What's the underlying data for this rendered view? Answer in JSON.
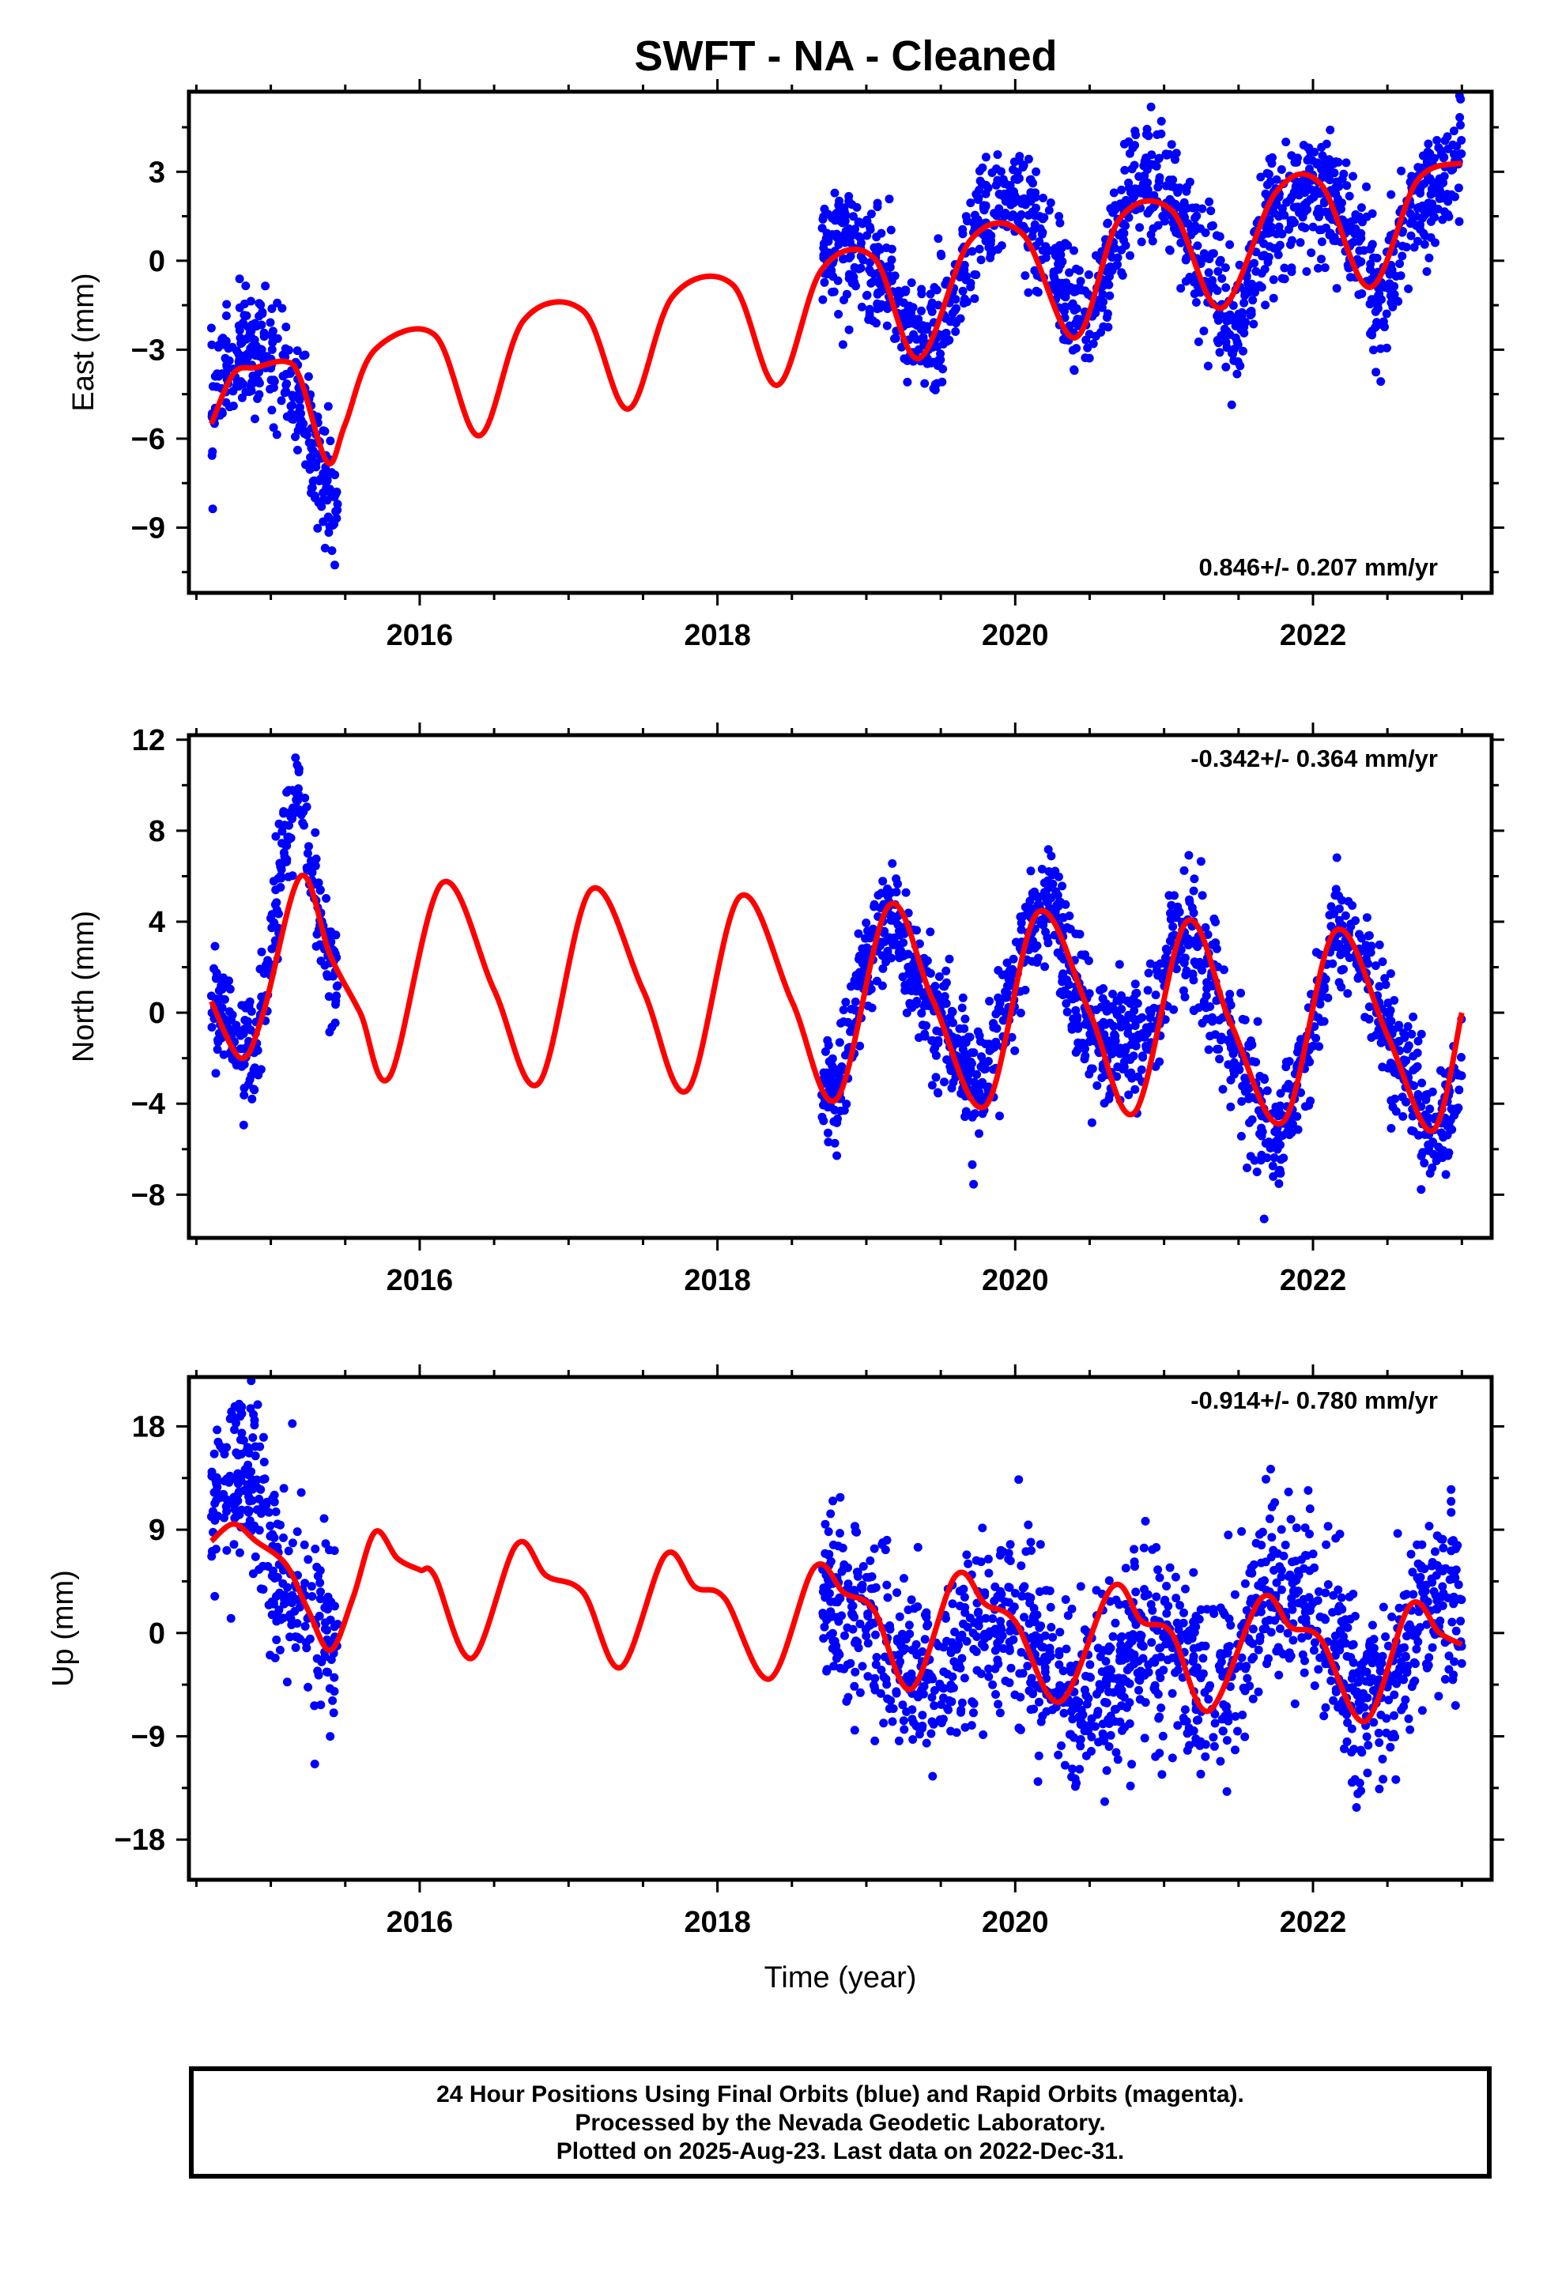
{
  "title": "SWFT  - NA - Cleaned",
  "footer": {
    "line1": "24 Hour Positions Using Final Orbits (blue) and Rapid Orbits (magenta).",
    "line2": "Processed by the Nevada Geodetic Laboratory.",
    "line3": "Plotted on 2025-Aug-23. Last data on 2022-Dec-31."
  },
  "colors": {
    "points": "#0000ff",
    "model": "#ff0000",
    "axes": "#000000"
  },
  "chart_data": [
    {
      "type": "scatter",
      "ylabel": "East (mm)",
      "xlabel": "",
      "annotation": "0.846+/- 0.207 mm/yr",
      "annotation_position": "bottom-right",
      "xlim": [
        2014.45,
        2023.2
      ],
      "ylim": [
        -11.2,
        5.7
      ],
      "xticks": [
        2016,
        2018,
        2020,
        2022
      ],
      "yticks": [
        -9,
        -6,
        -3,
        0,
        3
      ],
      "rate_mm_per_yr": 0.846,
      "series": [
        {
          "kind": "points",
          "values_summary": "daily positions",
          "segments": [
            {
              "start": 2014.6,
              "end": 2015.45,
              "points": [
                [
                  2014.6,
                  -5.0
                ],
                [
                  2014.7,
                  -3.8
                ],
                [
                  2014.8,
                  -3.2
                ],
                [
                  2014.9,
                  -2.9
                ],
                [
                  2015.0,
                  -3.1
                ],
                [
                  2015.1,
                  -3.6
                ],
                [
                  2015.2,
                  -4.8
                ],
                [
                  2015.3,
                  -6.5
                ],
                [
                  2015.4,
                  -8.0
                ]
              ],
              "noise": 1.0
            },
            {
              "start": 2018.7,
              "end": 2023.0,
              "points": [
                [
                  2018.7,
                  0.5
                ],
                [
                  2018.9,
                  0.5
                ],
                [
                  2019.1,
                  -0.5
                ],
                [
                  2019.3,
                  -2.3
                ],
                [
                  2019.45,
                  -2.8
                ],
                [
                  2019.6,
                  -1.0
                ],
                [
                  2019.8,
                  1.5
                ],
                [
                  2020.0,
                  2.0
                ],
                [
                  2020.2,
                  0.5
                ],
                [
                  2020.35,
                  -1.7
                ],
                [
                  2020.5,
                  -2.2
                ],
                [
                  2020.8,
                  2.8
                ],
                [
                  2021.0,
                  2.6
                ],
                [
                  2021.2,
                  0.5
                ],
                [
                  2021.35,
                  -1.3
                ],
                [
                  2021.5,
                  -2.2
                ],
                [
                  2021.7,
                  1.5
                ],
                [
                  2021.9,
                  2.0
                ],
                [
                  2022.1,
                  2.2
                ],
                [
                  2022.3,
                  0.5
                ],
                [
                  2022.45,
                  -1.5
                ],
                [
                  2022.6,
                  0.8
                ],
                [
                  2022.8,
                  2.5
                ],
                [
                  2023.0,
                  3.5
                ]
              ],
              "noise": 1.0
            }
          ]
        },
        {
          "kind": "line",
          "name": "",
          "points": [
            [
              2014.6,
              -5.5
            ],
            [
              2014.75,
              -3.8
            ],
            [
              2014.9,
              -3.6
            ],
            [
              2015.1,
              -3.4
            ],
            [
              2015.2,
              -4.0
            ],
            [
              2015.38,
              -6.8
            ],
            [
              2015.5,
              -5.5
            ],
            [
              2015.7,
              -3.0
            ],
            [
              2016.1,
              -2.5
            ],
            [
              2016.4,
              -5.9
            ],
            [
              2016.7,
              -2.0
            ],
            [
              2017.1,
              -1.7
            ],
            [
              2017.4,
              -5.0
            ],
            [
              2017.7,
              -1.2
            ],
            [
              2018.1,
              -0.8
            ],
            [
              2018.4,
              -4.2
            ],
            [
              2018.7,
              -0.3
            ],
            [
              2019.05,
              0.1
            ],
            [
              2019.35,
              -3.3
            ],
            [
              2019.7,
              0.7
            ],
            [
              2020.05,
              0.9
            ],
            [
              2020.4,
              -2.6
            ],
            [
              2020.7,
              1.4
            ],
            [
              2021.05,
              1.7
            ],
            [
              2021.38,
              -1.6
            ],
            [
              2021.75,
              2.3
            ],
            [
              2022.05,
              2.6
            ],
            [
              2022.38,
              -0.9
            ],
            [
              2022.7,
              2.7
            ],
            [
              2023.0,
              3.3
            ]
          ]
        }
      ]
    },
    {
      "type": "scatter",
      "ylabel": "North (mm)",
      "xlabel": "",
      "annotation": "-0.342+/- 0.364 mm/yr",
      "annotation_position": "top-right",
      "xlim": [
        2014.45,
        2023.2
      ],
      "ylim": [
        -9.9,
        12.2
      ],
      "xticks": [
        2016,
        2018,
        2020,
        2022
      ],
      "yticks": [
        -8,
        -4,
        0,
        4,
        8,
        12
      ],
      "rate_mm_per_yr": -0.342,
      "series": [
        {
          "kind": "points",
          "values_summary": "daily positions",
          "segments": [
            {
              "start": 2014.6,
              "end": 2015.45,
              "points": [
                [
                  2014.6,
                  1.0
                ],
                [
                  2014.75,
                  -1.5
                ],
                [
                  2014.9,
                  -2.0
                ],
                [
                  2015.0,
                  3.0
                ],
                [
                  2015.1,
                  7.5
                ],
                [
                  2015.2,
                  10.0
                ],
                [
                  2015.3,
                  5.0
                ],
                [
                  2015.45,
                  0.5
                ]
              ],
              "noise": 1.3
            },
            {
              "start": 2018.7,
              "end": 2023.0,
              "points": [
                [
                  2018.7,
                  -3.0
                ],
                [
                  2018.8,
                  -3.5
                ],
                [
                  2019.0,
                  2.0
                ],
                [
                  2019.15,
                  4.5
                ],
                [
                  2019.3,
                  2.0
                ],
                [
                  2019.5,
                  -0.5
                ],
                [
                  2019.75,
                  -3.5
                ],
                [
                  2019.9,
                  -1.0
                ],
                [
                  2020.1,
                  4.0
                ],
                [
                  2020.25,
                  5.0
                ],
                [
                  2020.4,
                  1.0
                ],
                [
                  2020.55,
                  -1.5
                ],
                [
                  2020.9,
                  -1.0
                ],
                [
                  2021.1,
                  3.5
                ],
                [
                  2021.3,
                  1.5
                ],
                [
                  2021.5,
                  -2.0
                ],
                [
                  2021.75,
                  -6.0
                ],
                [
                  2021.95,
                  -2.0
                ],
                [
                  2022.15,
                  4.0
                ],
                [
                  2022.35,
                  2.0
                ],
                [
                  2022.55,
                  -1.5
                ],
                [
                  2022.8,
                  -5.5
                ],
                [
                  2023.0,
                  -3.0
                ]
              ],
              "noise": 1.3
            }
          ]
        },
        {
          "kind": "line",
          "name": "",
          "points": [
            [
              2014.6,
              0.5
            ],
            [
              2014.8,
              -2.0
            ],
            [
              2014.95,
              0.0
            ],
            [
              2015.2,
              6.0
            ],
            [
              2015.4,
              2.5
            ],
            [
              2015.6,
              0.0
            ],
            [
              2015.8,
              -2.8
            ],
            [
              2016.15,
              5.7
            ],
            [
              2016.5,
              1.0
            ],
            [
              2016.8,
              -3.1
            ],
            [
              2017.15,
              5.4
            ],
            [
              2017.5,
              1.0
            ],
            [
              2017.8,
              -3.4
            ],
            [
              2018.15,
              5.1
            ],
            [
              2018.5,
              0.5
            ],
            [
              2018.8,
              -3.8
            ],
            [
              2019.15,
              4.7
            ],
            [
              2019.45,
              0.5
            ],
            [
              2019.8,
              -4.1
            ],
            [
              2020.15,
              4.4
            ],
            [
              2020.5,
              0.0
            ],
            [
              2020.8,
              -4.4
            ],
            [
              2021.15,
              4.0
            ],
            [
              2021.45,
              -0.5
            ],
            [
              2021.8,
              -4.8
            ],
            [
              2022.15,
              3.6
            ],
            [
              2022.5,
              -1.0
            ],
            [
              2022.8,
              -5.2
            ],
            [
              2023.0,
              0.0
            ]
          ]
        }
      ]
    },
    {
      "type": "scatter",
      "ylabel": "Up (mm)",
      "xlabel": "Time (year)",
      "annotation": "-0.914+/- 0.780 mm/yr",
      "annotation_position": "top-right",
      "xlim": [
        2014.45,
        2023.2
      ],
      "ylim": [
        -21.5,
        22.3
      ],
      "xticks": [
        2016,
        2018,
        2020,
        2022
      ],
      "yticks": [
        -18,
        -9,
        0,
        9,
        18
      ],
      "rate_mm_per_yr": -0.914,
      "series": [
        {
          "kind": "points",
          "values_summary": "daily positions",
          "segments": [
            {
              "start": 2014.6,
              "end": 2015.45,
              "points": [
                [
                  2014.6,
                  12.0
                ],
                [
                  2014.75,
                  14.0
                ],
                [
                  2014.9,
                  12.0
                ],
                [
                  2015.05,
                  5.0
                ],
                [
                  2015.2,
                  2.0
                ],
                [
                  2015.35,
                  0.0
                ],
                [
                  2015.45,
                  0.5
                ]
              ],
              "noise": 4.0
            },
            {
              "start": 2018.7,
              "end": 2023.0,
              "points": [
                [
                  2018.7,
                  3.0
                ],
                [
                  2018.9,
                  2.0
                ],
                [
                  2019.1,
                  0.0
                ],
                [
                  2019.3,
                  -4.0
                ],
                [
                  2019.5,
                  -3.0
                ],
                [
                  2019.7,
                  0.0
                ],
                [
                  2019.9,
                  2.0
                ],
                [
                  2020.1,
                  -1.0
                ],
                [
                  2020.3,
                  -5.0
                ],
                [
                  2020.5,
                  -7.0
                ],
                [
                  2020.9,
                  0.0
                ],
                [
                  2021.1,
                  -3.0
                ],
                [
                  2021.3,
                  -6.0
                ],
                [
                  2021.5,
                  -2.0
                ],
                [
                  2021.7,
                  4.0
                ],
                [
                  2021.9,
                  3.0
                ],
                [
                  2022.1,
                  0.0
                ],
                [
                  2022.3,
                  -6.0
                ],
                [
                  2022.5,
                  -4.0
                ],
                [
                  2022.7,
                  1.0
                ],
                [
                  2022.9,
                  4.0
                ],
                [
                  2023.0,
                  2.0
                ]
              ],
              "noise": 4.0
            }
          ]
        },
        {
          "kind": "line",
          "name": "",
          "points": [
            [
              2014.6,
              8.0
            ],
            [
              2014.75,
              9.5
            ],
            [
              2014.9,
              8.0
            ],
            [
              2015.1,
              6.0
            ],
            [
              2015.25,
              2.0
            ],
            [
              2015.4,
              -1.5
            ],
            [
              2015.55,
              3.0
            ],
            [
              2015.7,
              8.8
            ],
            [
              2015.85,
              6.5
            ],
            [
              2016.0,
              5.5
            ],
            [
              2016.1,
              5.0
            ],
            [
              2016.35,
              -2.2
            ],
            [
              2016.65,
              7.7
            ],
            [
              2016.85,
              5.0
            ],
            [
              2017.1,
              3.5
            ],
            [
              2017.35,
              -3.0
            ],
            [
              2017.65,
              6.8
            ],
            [
              2017.85,
              4.0
            ],
            [
              2018.05,
              3.0
            ],
            [
              2018.35,
              -4.0
            ],
            [
              2018.65,
              5.7
            ],
            [
              2018.85,
              3.5
            ],
            [
              2019.05,
              2.0
            ],
            [
              2019.3,
              -4.9
            ],
            [
              2019.6,
              5.0
            ],
            [
              2019.8,
              2.5
            ],
            [
              2020.0,
              1.0
            ],
            [
              2020.3,
              -6.0
            ],
            [
              2020.65,
              4.0
            ],
            [
              2020.85,
              1.0
            ],
            [
              2021.05,
              0.0
            ],
            [
              2021.3,
              -6.8
            ],
            [
              2021.65,
              3.0
            ],
            [
              2021.85,
              0.5
            ],
            [
              2022.05,
              -0.5
            ],
            [
              2022.35,
              -7.7
            ],
            [
              2022.65,
              2.4
            ],
            [
              2022.85,
              0.0
            ],
            [
              2023.0,
              -1.0
            ]
          ]
        }
      ]
    }
  ]
}
